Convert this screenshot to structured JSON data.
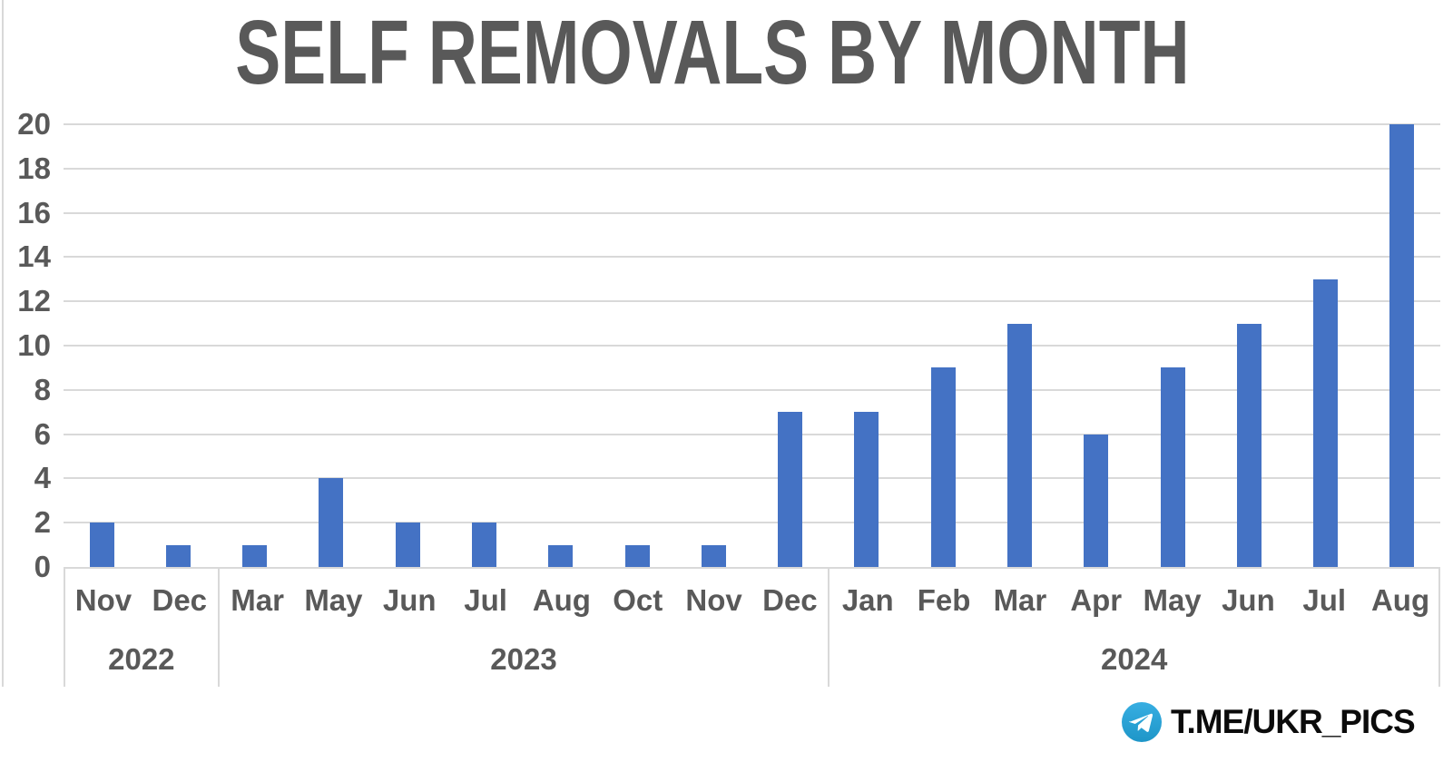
{
  "title": "SELF REMOVALS BY MONTH",
  "footer": {
    "channel": "T.ME/UKR_PICS",
    "icon": "telegram-icon"
  },
  "colors": {
    "bar": "#4472C4",
    "gridline": "#D9D9D9",
    "axis_text": "#595959",
    "title_text": "#595959",
    "footer_text": "#0B0B0B",
    "telegram_blue_top": "#37AEE2",
    "telegram_blue_bottom": "#1E96C8"
  },
  "chart_data": {
    "type": "bar",
    "title": "SELF REMOVALS BY MONTH",
    "xlabel": "",
    "ylabel": "",
    "ylim": [
      0,
      20
    ],
    "ytick_step": 2,
    "yticks": [
      0,
      2,
      4,
      6,
      8,
      10,
      12,
      14,
      16,
      18,
      20
    ],
    "grid": "horizontal gridlines on",
    "legend": "none",
    "bar_color": "#4472C4",
    "groups": [
      {
        "year": "2022",
        "months": [
          "Nov",
          "Dec"
        ],
        "values": [
          2,
          1
        ]
      },
      {
        "year": "2023",
        "months": [
          "Mar",
          "May",
          "Jun",
          "Jul",
          "Aug",
          "Oct",
          "Nov",
          "Dec"
        ],
        "values": [
          1,
          4,
          2,
          2,
          1,
          1,
          1,
          7
        ]
      },
      {
        "year": "2024",
        "months": [
          "Jan",
          "Feb",
          "Mar",
          "Apr",
          "May",
          "Jun",
          "Jul",
          "Aug"
        ],
        "values": [
          7,
          9,
          11,
          6,
          9,
          11,
          13,
          20
        ]
      }
    ]
  }
}
